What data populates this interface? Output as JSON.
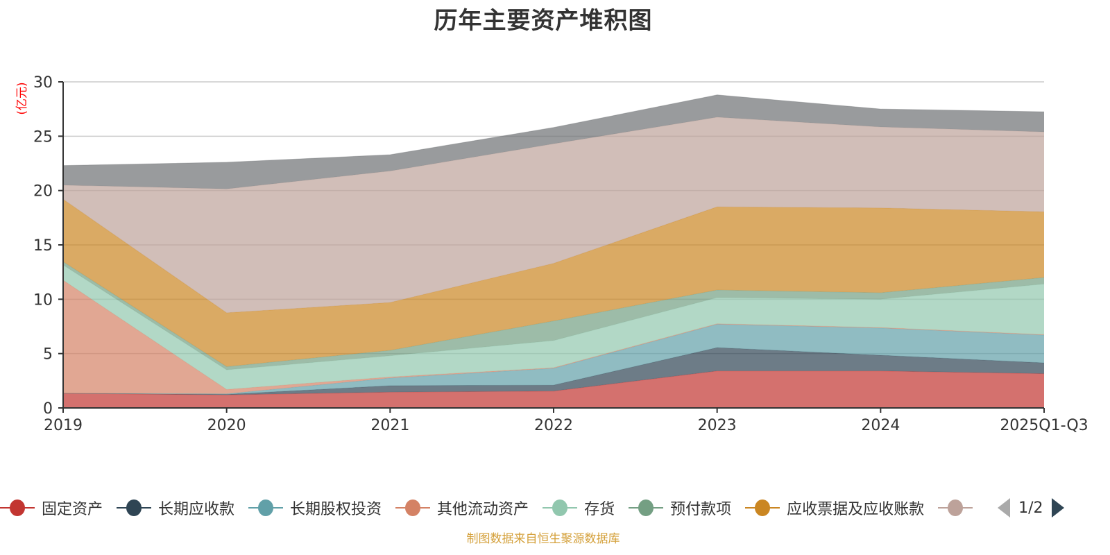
{
  "chart_data": {
    "type": "area",
    "stacked": true,
    "title": "历年主要资产堆积图",
    "ylabel": "(亿元)",
    "xlabel": "",
    "categories": [
      "2019",
      "2020",
      "2021",
      "2022",
      "2023",
      "2024",
      "2025Q1-Q3"
    ],
    "ylim": [
      0,
      30
    ],
    "yticks": [
      0,
      5,
      10,
      15,
      20,
      25,
      30
    ],
    "grid": true,
    "legend_position": "bottom",
    "series": [
      {
        "name": "固定资产",
        "color": "#c23531",
        "values": [
          1.35,
          1.2,
          1.45,
          1.55,
          3.4,
          3.4,
          3.15
        ]
      },
      {
        "name": "长期应收款",
        "color": "#2f4554",
        "values": [
          0.0,
          0.05,
          0.6,
          0.55,
          2.15,
          1.45,
          1.0
        ]
      },
      {
        "name": "长期股权投资",
        "color": "#61a0a8",
        "values": [
          0.0,
          0.05,
          0.7,
          1.55,
          2.15,
          2.5,
          2.55
        ]
      },
      {
        "name": "其他流动资产",
        "color": "#d48265",
        "values": [
          10.4,
          0.4,
          0.1,
          0.05,
          0.05,
          0.05,
          0.05
        ]
      },
      {
        "name": "存货",
        "color": "#91c7ae",
        "values": [
          1.4,
          1.8,
          1.95,
          2.5,
          2.4,
          2.6,
          4.65
        ]
      },
      {
        "name": "预付款项",
        "color": "#749f83",
        "values": [
          0.3,
          0.3,
          0.5,
          1.8,
          0.7,
          0.6,
          0.6
        ]
      },
      {
        "name": "应收票据及应收账款",
        "color": "#ca8622",
        "values": [
          5.75,
          4.95,
          4.4,
          5.3,
          7.65,
          7.8,
          6.05
        ]
      },
      {
        "name": "",
        "color": "#bda29a",
        "values": [
          1.3,
          11.4,
          12.1,
          11.0,
          8.25,
          7.45,
          7.35
        ]
      },
      {
        "name": "",
        "color": "#6e7074",
        "values": [
          1.8,
          2.45,
          1.5,
          1.5,
          2.05,
          1.65,
          1.85
        ]
      }
    ]
  },
  "legend": {
    "items": [
      {
        "label": "固定资产",
        "color": "#c23531"
      },
      {
        "label": "长期应收款",
        "color": "#2f4554"
      },
      {
        "label": "长期股权投资",
        "color": "#61a0a8"
      },
      {
        "label": "其他流动资产",
        "color": "#d48265"
      },
      {
        "label": "存货",
        "color": "#91c7ae"
      },
      {
        "label": "预付款项",
        "color": "#749f83"
      },
      {
        "label": "应收票据及应收账款",
        "color": "#ca8622"
      },
      {
        "label": "",
        "color": "#bda29a"
      }
    ],
    "pager": {
      "text": "1/2"
    }
  },
  "footer": {
    "source": "制图数据来自恒生聚源数据库"
  }
}
